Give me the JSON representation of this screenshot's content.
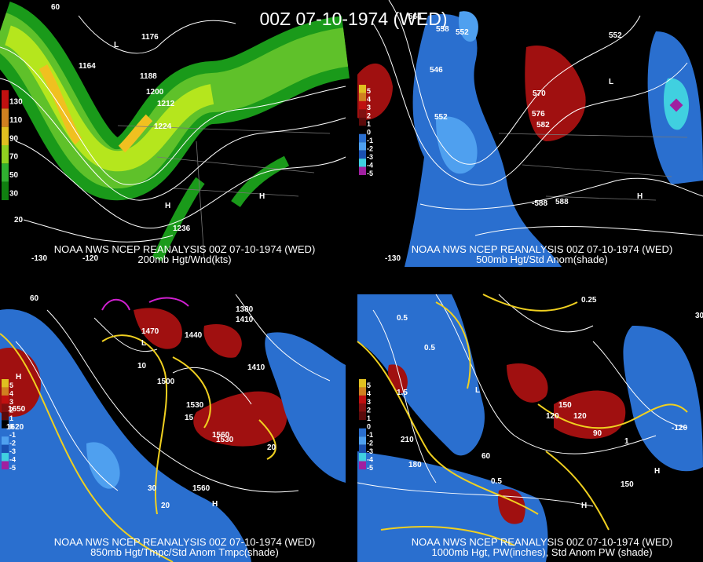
{
  "title": "00Z 07-10-1974 (WED)",
  "panels": [
    {
      "source": "NOAA NWS NCEP REANALYSIS 00Z 07-10-1974 (WED)",
      "caption": "200mb Hgt/Wnd(kts)",
      "legend": [
        "130",
        "110",
        "90",
        "70",
        "50",
        "30"
      ],
      "axis_labels": [
        "60",
        "20",
        "-130",
        "-120"
      ],
      "contour_labels": [
        "1176",
        "1164",
        "1188",
        "1200",
        "1212",
        "1224",
        "1236",
        "H",
        "L",
        "H"
      ]
    },
    {
      "source": "NOAA NWS NCEP REANALYSIS 00Z 07-10-1974 (WED)",
      "caption": "500mb Hgt/Std Anom(shade)",
      "legend": [
        "5",
        "4",
        "3",
        "2",
        "1",
        "0",
        "-1",
        "-2",
        "-3",
        "-4",
        "-5"
      ],
      "axis_labels": [
        "-130"
      ],
      "contour_labels": [
        "564",
        "558",
        "552",
        "546",
        "552",
        "570",
        "576",
        "582",
        "-588",
        "588",
        "552",
        "H",
        "L"
      ]
    },
    {
      "source": "NOAA NWS NCEP REANALYSIS 00Z 07-10-1974 (WED)",
      "caption": "850mb Hgt/Tmpc/Std Anom Tmpc(shade)",
      "legend": [
        "5",
        "4",
        "3",
        "2",
        "1",
        "0",
        "-1",
        "-2",
        "-3",
        "-4",
        "-5"
      ],
      "axis_labels": [
        "60"
      ],
      "contour_labels": [
        "1380",
        "1410",
        "1470",
        "1440",
        "1500",
        "1530",
        "1560",
        "1410",
        "1530",
        "1560",
        "1650",
        "1620",
        "10",
        "15",
        "20",
        "30",
        "20",
        "H",
        "H",
        "L"
      ]
    },
    {
      "source": "NOAA NWS NCEP REANALYSIS 00Z 07-10-1974 (WED)",
      "caption": "1000mb Hgt, PW(inches), Std Anom PW (shade)",
      "legend": [
        "5",
        "4",
        "3",
        "2",
        "1",
        "0",
        "-1",
        "-2",
        "-3",
        "-4",
        "-5"
      ],
      "axis_labels": [
        "30"
      ],
      "contour_labels": [
        "0.25",
        "0.5",
        "0.5",
        "150",
        "120",
        "90",
        "60",
        "210",
        "180",
        "1.5",
        "0.5",
        "1",
        "120",
        "150",
        "-120",
        "H",
        "H",
        "L"
      ]
    }
  ]
}
